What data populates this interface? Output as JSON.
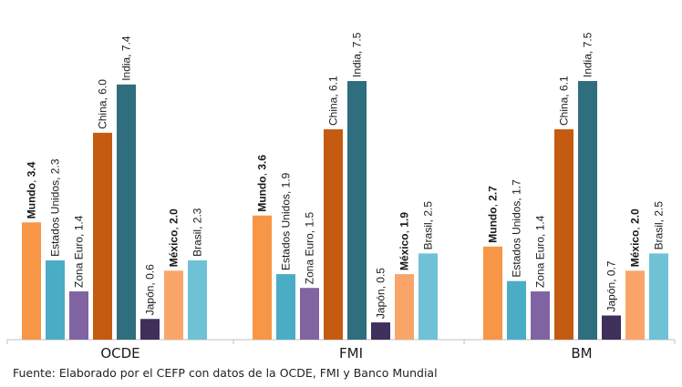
{
  "chart_data": {
    "type": "bar",
    "categories": [
      "OCDE",
      "FMI",
      "BM"
    ],
    "series": [
      {
        "name": "Mundo",
        "values": [
          3.4,
          3.6,
          2.7
        ],
        "color": "#F79646",
        "bold": true
      },
      {
        "name": "Estados Unidos",
        "values": [
          2.3,
          1.9,
          1.7
        ],
        "color": "#4BACC6",
        "bold": false
      },
      {
        "name": "Zona Euro",
        "values": [
          1.4,
          1.5,
          1.4
        ],
        "color": "#8064A2",
        "bold": false
      },
      {
        "name": "China",
        "values": [
          6.0,
          6.1,
          6.1
        ],
        "color": "#C55A11",
        "bold": false
      },
      {
        "name": "India",
        "values": [
          7.4,
          7.5,
          7.5
        ],
        "color": "#2E6E7E",
        "bold": false
      },
      {
        "name": "Japón",
        "values": [
          0.6,
          0.5,
          0.7
        ],
        "color": "#3F2F5B",
        "bold": false
      },
      {
        "name": "México",
        "values": [
          2.0,
          1.9,
          2.0
        ],
        "color": "#F9A56A",
        "bold": true
      },
      {
        "name": "Brasil",
        "values": [
          2.3,
          2.5,
          2.5
        ],
        "color": "#6FC2D6",
        "bold": false
      }
    ],
    "value_labels": [
      [
        "Mundo, 3.4",
        "Estados Unidos, 2.3",
        "Zona Euro, 1.4",
        "China, 6.0",
        "India, 7.4",
        "Japón, 0.6",
        "México, 2.0",
        "Brasil, 2.3"
      ],
      [
        "Mundo, 3.6",
        "Estados Unidos, 1.9",
        "Zona Euro, 1.5",
        "China, 6.1",
        "India, 7.5",
        "Japón, 0.5",
        "México, 1.9",
        "Brasil, 2.5"
      ],
      [
        "Mundo, 2.7",
        "Estados Unidos, 1.7",
        "Zona Euro, 1.4",
        "China, 6.1",
        "India, 7.5",
        "Japón, 0.7",
        "México, 2.0",
        "Brasil, 2.5"
      ]
    ],
    "ylim": [
      0,
      7.5
    ],
    "grid": false,
    "legend": "none",
    "axis_color": "#BFBFBF"
  },
  "source_note": "Fuente: Elaborado por el CEFP con datos de la OCDE, FMI y Banco Mundial"
}
